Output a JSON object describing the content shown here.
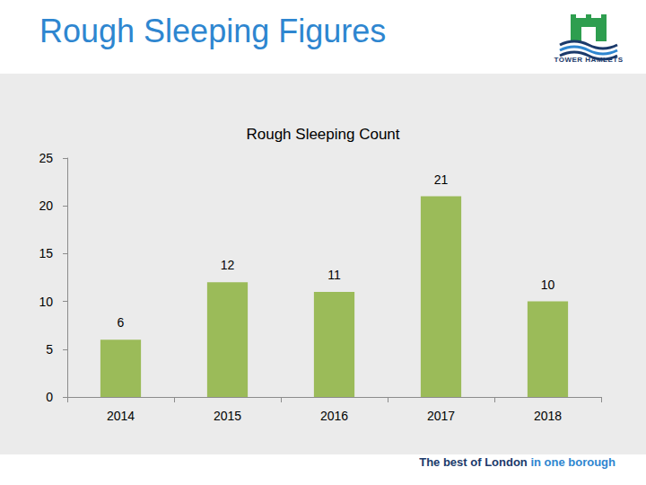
{
  "slide": {
    "title": "Rough Sleeping Figures",
    "logo": "TOWER HAMLETS",
    "footer": [
      "The best of London",
      "in one borough"
    ]
  },
  "chart_data": {
    "type": "bar",
    "title": "Rough Sleeping Count",
    "categories": [
      "2014",
      "2015",
      "2016",
      "2017",
      "2018"
    ],
    "values": [
      6,
      12,
      11,
      21,
      10
    ],
    "color": "#9bbb59",
    "ylim": [
      0,
      25
    ],
    "yticks": [
      0,
      5,
      10,
      15,
      20,
      25
    ],
    "grid": false,
    "data_labels": true
  }
}
